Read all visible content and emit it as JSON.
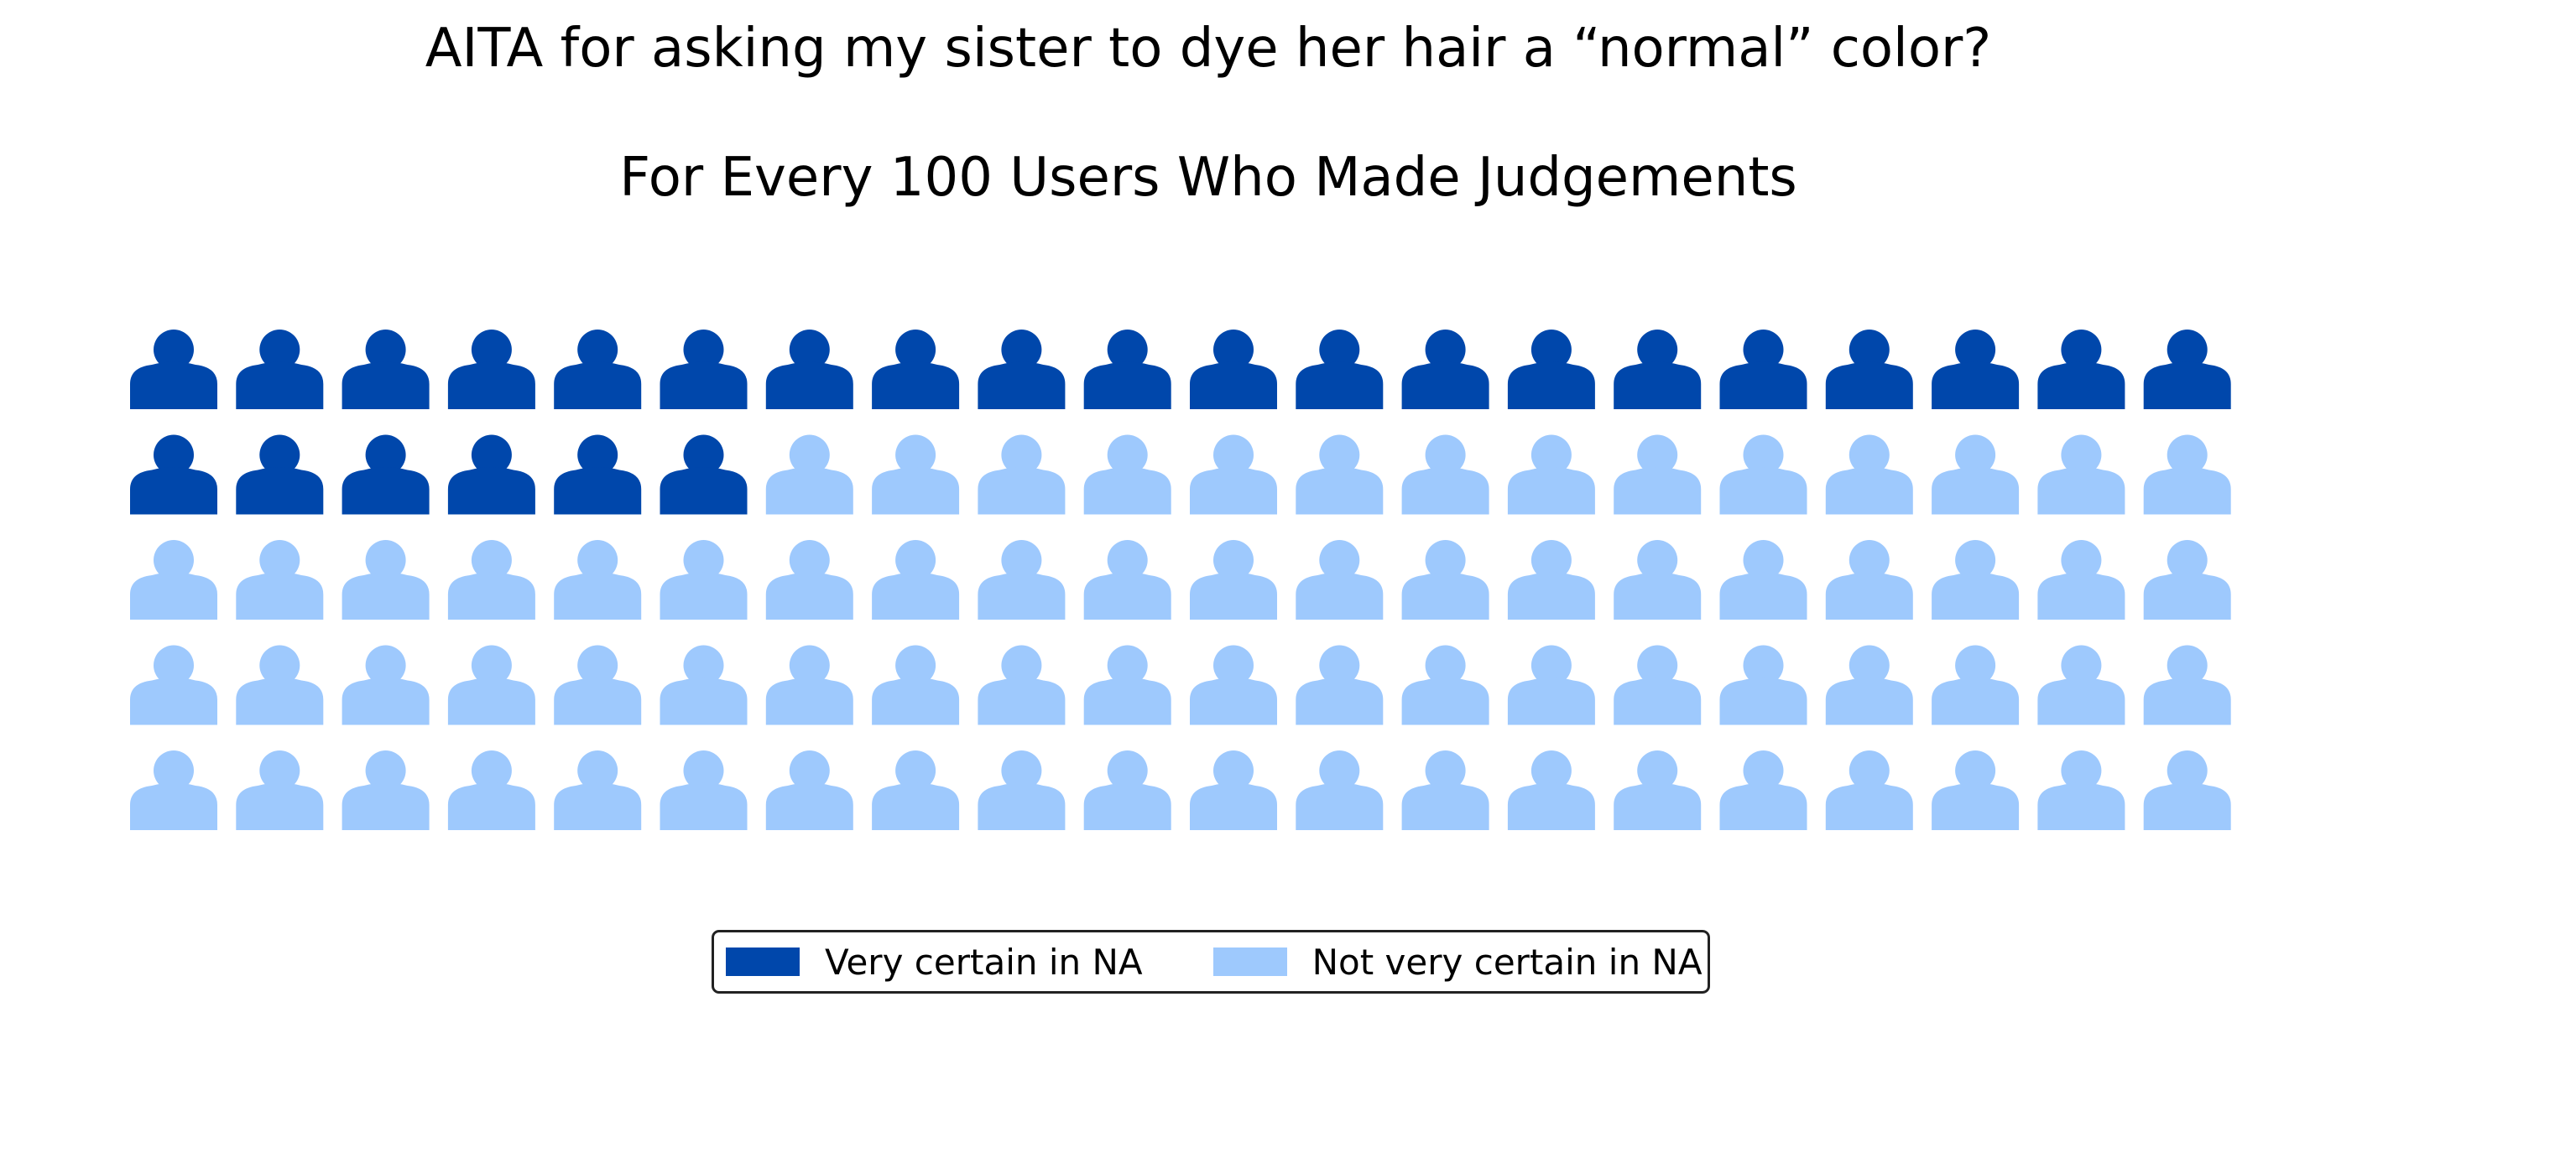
{
  "chart_data": {
    "type": "waffle",
    "title": "AITA for asking my sister to dye her hair a “normal” color?",
    "subtitle": "For Every 100 Users Who Made Judgements",
    "rows": 5,
    "columns": 20,
    "total": 100,
    "icon": "person-icon",
    "series": [
      {
        "name": "Very certain in NA",
        "value": 26,
        "color": "#0047ab"
      },
      {
        "name": "Not very certain in NA",
        "value": 74,
        "color": "#9ec9fd"
      }
    ],
    "legend": {
      "position": "bottom-center",
      "columns": 2
    },
    "grid": false
  }
}
